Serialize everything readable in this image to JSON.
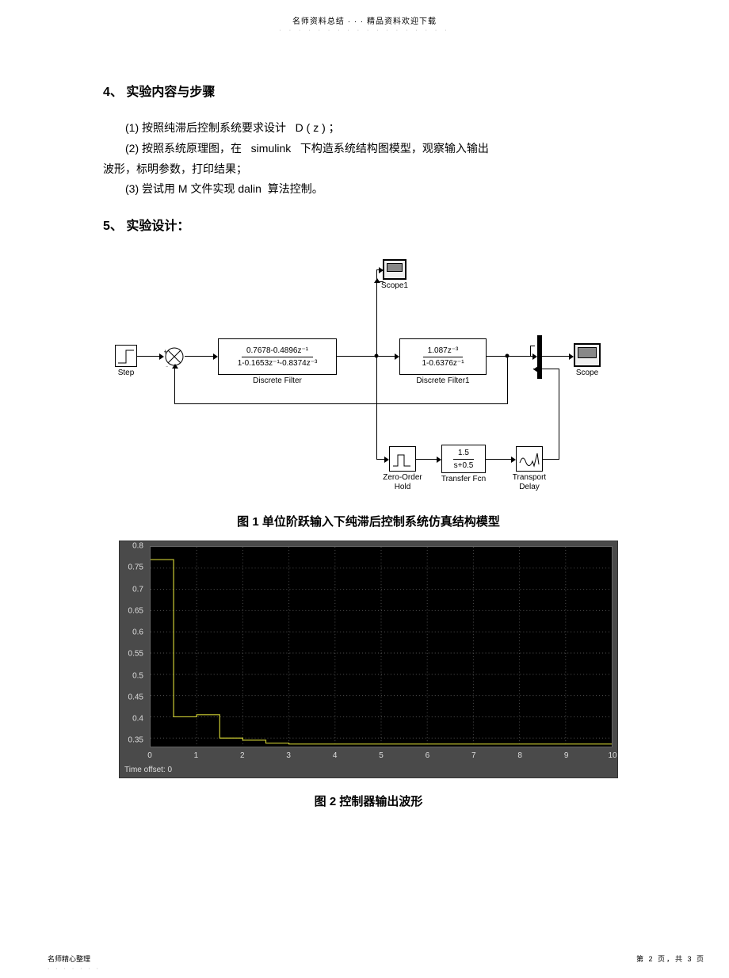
{
  "header": {
    "top": "名师资料总结 · · · 精品资料欢迎下载",
    "sub": "· · · · · · · · · · · · · · · · · ·"
  },
  "section4": {
    "title_num": "4、",
    "title": "实验内容与步骤",
    "p1_a": "(1)  按照纯滞后控制系统要求设计",
    "p1_b": "D ( z ) ；",
    "p2_a": "(2)  按照系统原理图，在",
    "p2_b": "simulink",
    "p2_c": "下构造系统结构图模型，观察输入输出",
    "p2_d": "波形，标明参数，打印结果；",
    "p3_a": "(3)  尝试用",
    "p3_b": "M 文件实现",
    "p3_c": "dalin",
    "p3_d": "算法控制。"
  },
  "section5": {
    "title_num": "5、",
    "title": "实验设计："
  },
  "simulink": {
    "step_label": "Step",
    "filter1_num": "0.7678-0.4896z⁻¹",
    "filter1_den": "1-0.1653z⁻¹-0.8374z⁻³",
    "filter1_label": "Discrete Filter",
    "filter2_num": "1.087z⁻³",
    "filter2_den": "1-0.6376z⁻¹",
    "filter2_label": "Discrete Filter1",
    "zoh_label": "Zero-Order",
    "zoh_label2": "Hold",
    "tf_num": "1.5",
    "tf_den": "s+0.5",
    "tf_label": "Transfer Fcn",
    "delay_label": "Transport",
    "delay_label2": "Delay",
    "scope_label": "Scope",
    "scope1_label": "Scope1"
  },
  "caption1": "图 1  单位阶跃输入下纯滞后控制系统仿真结构模型",
  "caption2": "图 2  控制器输出波形",
  "scope": {
    "bg": "#4a4a4a",
    "plot_bg": "#000000",
    "grid_color": "#555555",
    "tick_color": "#dddddd",
    "signal_color": "#cccc33",
    "yticks": [
      "0.8",
      "0.75",
      "0.7",
      "0.65",
      "0.6",
      "0.55",
      "0.5",
      "0.45",
      "0.4",
      "0.35"
    ],
    "ylim": [
      0.33,
      0.8
    ],
    "xticks": [
      "0",
      "1",
      "2",
      "3",
      "4",
      "5",
      "6",
      "7",
      "8",
      "9",
      "10"
    ],
    "xlim": [
      0,
      10
    ],
    "timeoffset": "Time offset:   0",
    "signal_points": [
      [
        0,
        0.77
      ],
      [
        0.5,
        0.77
      ],
      [
        0.5,
        0.4
      ],
      [
        1.0,
        0.4
      ],
      [
        1.0,
        0.405
      ],
      [
        1.5,
        0.405
      ],
      [
        1.5,
        0.35
      ],
      [
        2.0,
        0.35
      ],
      [
        2.0,
        0.345
      ],
      [
        2.5,
        0.345
      ],
      [
        2.5,
        0.338
      ],
      [
        3.0,
        0.338
      ],
      [
        3.0,
        0.336
      ],
      [
        10,
        0.336
      ]
    ]
  },
  "footer": {
    "left": "名师精心整理",
    "left_sub": "· · · · · · ·",
    "right": "第 2 页，共 3 页"
  }
}
